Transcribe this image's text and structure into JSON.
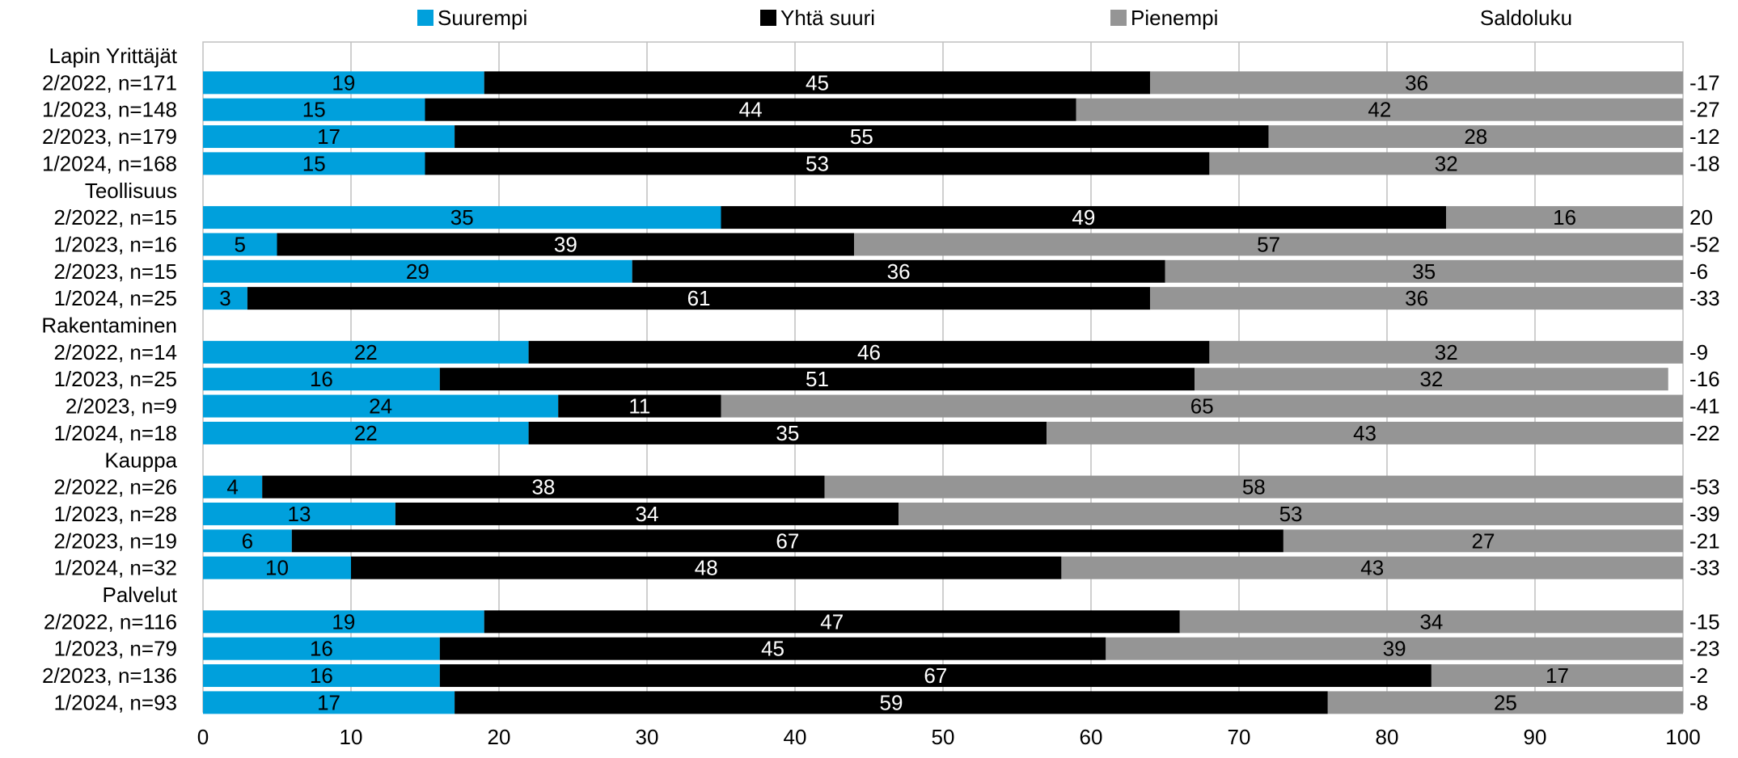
{
  "chart_data": {
    "type": "bar",
    "orientation": "horizontal",
    "stacked": true,
    "xlim": [
      0,
      100
    ],
    "x_ticks": [
      "0",
      "10",
      "20",
      "30",
      "40",
      "50",
      "60",
      "70",
      "80",
      "90",
      "100"
    ],
    "grid": "vertical",
    "legend_position": "top",
    "saldo_header": "Saldoluku",
    "series": [
      {
        "name": "Suurempi",
        "color": "#00a0dc"
      },
      {
        "name": "Yhtä suuri",
        "color": "#000000"
      },
      {
        "name": "Pienempi",
        "color": "#959595"
      }
    ],
    "rows": [
      {
        "label": "Lapin Yrittäjät",
        "is_group": true
      },
      {
        "label": "2/2022, n=171",
        "values": [
          19,
          45,
          36
        ],
        "saldo": "-17"
      },
      {
        "label": "1/2023, n=148",
        "values": [
          15,
          44,
          42
        ],
        "saldo": "-27"
      },
      {
        "label": "2/2023, n=179",
        "values": [
          17,
          55,
          28
        ],
        "saldo": "-12"
      },
      {
        "label": "1/2024, n=168",
        "values": [
          15,
          53,
          32
        ],
        "saldo": "-18"
      },
      {
        "label": "Teollisuus",
        "is_group": true
      },
      {
        "label": "2/2022, n=15",
        "values": [
          35,
          49,
          16
        ],
        "saldo": "20"
      },
      {
        "label": "1/2023, n=16",
        "values": [
          5,
          39,
          57
        ],
        "saldo": "-52"
      },
      {
        "label": "2/2023, n=15",
        "values": [
          29,
          36,
          35
        ],
        "saldo": "-6"
      },
      {
        "label": "1/2024, n=25",
        "values": [
          3,
          61,
          36
        ],
        "saldo": "-33"
      },
      {
        "label": "Rakentaminen",
        "is_group": true
      },
      {
        "label": "2/2022, n=14",
        "values": [
          22,
          46,
          32
        ],
        "saldo": "-9"
      },
      {
        "label": "1/2023, n=25",
        "values": [
          16,
          51,
          32
        ],
        "saldo": "-16"
      },
      {
        "label": "2/2023, n=9",
        "values": [
          24,
          11,
          65
        ],
        "saldo": "-41"
      },
      {
        "label": "1/2024, n=18",
        "values": [
          22,
          35,
          43
        ],
        "saldo": "-22"
      },
      {
        "label": "Kauppa",
        "is_group": true
      },
      {
        "label": "2/2022, n=26",
        "values": [
          4,
          38,
          58
        ],
        "saldo": "-53"
      },
      {
        "label": "1/2023, n=28",
        "values": [
          13,
          34,
          53
        ],
        "saldo": "-39"
      },
      {
        "label": "2/2023, n=19",
        "values": [
          6,
          67,
          27
        ],
        "saldo": "-21"
      },
      {
        "label": "1/2024, n=32",
        "values": [
          10,
          48,
          43
        ],
        "saldo": "-33"
      },
      {
        "label": "Palvelut",
        "is_group": true
      },
      {
        "label": "2/2022, n=116",
        "values": [
          19,
          47,
          34
        ],
        "saldo": "-15"
      },
      {
        "label": "1/2023, n=79",
        "values": [
          16,
          45,
          39
        ],
        "saldo": "-23"
      },
      {
        "label": "2/2023, n=136",
        "values": [
          16,
          67,
          17
        ],
        "saldo": "-2"
      },
      {
        "label": "1/2024, n=93",
        "values": [
          17,
          59,
          25
        ],
        "saldo": "-8"
      }
    ]
  }
}
